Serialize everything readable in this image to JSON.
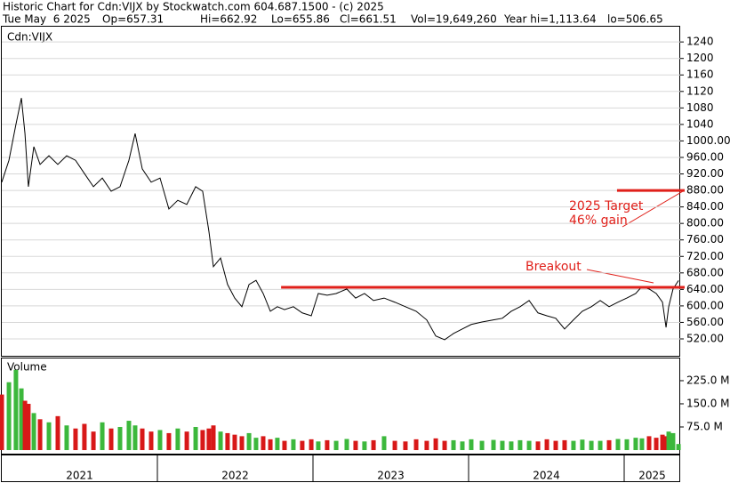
{
  "header": {
    "title": "Historic Chart for Cdn:VIJX by Stockwatch.com 604.687.1500 - (c) 2025",
    "stats": [
      "Tue May  6 2025",
      "Op=657.31",
      "Hi=662.92",
      "Lo=655.86",
      "Cl=661.51",
      "Vol=19,649,260",
      "Year hi=1,113.64",
      "lo=506.65"
    ]
  },
  "chart_data": [
    {
      "type": "line",
      "title": "Cdn:VIJX",
      "color": "#000000",
      "x": [
        2021.0,
        2021.046,
        2021.091,
        2021.126,
        2021.149,
        2021.171,
        2021.206,
        2021.246,
        2021.303,
        2021.36,
        2021.417,
        2021.474,
        2021.531,
        2021.589,
        2021.646,
        2021.703,
        2021.76,
        2021.817,
        2021.857,
        2021.903,
        2021.96,
        2022.017,
        2022.074,
        2022.131,
        2022.189,
        2022.246,
        2022.291,
        2022.331,
        2022.36,
        2022.406,
        2022.451,
        2022.497,
        2022.543,
        2022.589,
        2022.634,
        2022.68,
        2022.726,
        2022.771,
        2022.817,
        2022.874,
        2022.931,
        2022.989,
        2023.034,
        2023.091,
        2023.149,
        2023.217,
        2023.274,
        2023.331,
        2023.389,
        2023.457,
        2023.526,
        2023.594,
        2023.663,
        2023.731,
        2023.789,
        2023.846,
        2023.903,
        2023.96,
        2024.017,
        2024.086,
        2024.16,
        2024.217,
        2024.274,
        2024.331,
        2024.389,
        2024.446,
        2024.503,
        2024.56,
        2024.617,
        2024.674,
        2024.731,
        2024.789,
        2024.846,
        2024.903,
        2024.96,
        2025.017,
        2025.074,
        2025.114,
        2025.16,
        2025.206,
        2025.246,
        2025.269,
        2025.286,
        2025.314,
        2025.349
      ],
      "values": [
        900,
        953,
        1040,
        1104,
        1018,
        889,
        986,
        943,
        964,
        943,
        964,
        953,
        921,
        889,
        910,
        878,
        889,
        953,
        1018,
        932,
        900,
        910,
        835,
        856,
        846,
        889,
        878,
        781,
        695,
        716,
        652,
        619,
        598,
        652,
        662,
        630,
        587,
        598,
        591,
        598,
        583,
        576,
        630,
        626,
        630,
        641,
        619,
        630,
        613,
        619,
        609,
        598,
        587,
        566,
        527,
        518,
        533,
        544,
        555,
        561,
        566,
        570,
        587,
        598,
        613,
        583,
        576,
        570,
        544,
        566,
        587,
        598,
        613,
        598,
        609,
        619,
        630,
        647,
        641,
        630,
        609,
        548,
        598,
        641,
        661.51
      ],
      "xlim": [
        2021,
        2025.36
      ],
      "ylim": [
        479,
        1277
      ],
      "yticks": [
        {
          "value": 520,
          "label": "520.00"
        },
        {
          "value": 560,
          "label": "560.00"
        },
        {
          "value": 600,
          "label": "600.00"
        },
        {
          "value": 640,
          "label": "640.00"
        },
        {
          "value": 680,
          "label": "680.00"
        },
        {
          "value": 720,
          "label": "720.00"
        },
        {
          "value": 760,
          "label": "760.00"
        },
        {
          "value": 800,
          "label": "800.00"
        },
        {
          "value": 840,
          "label": "840.00"
        },
        {
          "value": 880,
          "label": "880.00"
        },
        {
          "value": 920,
          "label": "920.00"
        },
        {
          "value": 960,
          "label": "960.00"
        },
        {
          "value": 1000,
          "label": "1000.00"
        },
        1040,
        1080,
        1120,
        1160,
        1200,
        1240
      ],
      "grid": true,
      "levels": [
        {
          "value": 645,
          "from": 2022.795,
          "color": "#e0201a"
        },
        {
          "value": 880,
          "from": 2024.954,
          "color": "#e0201a"
        }
      ],
      "annotations": [
        "Breakout",
        "2025 Target",
        "46% gain"
      ]
    },
    {
      "type": "bar",
      "title": "Volume",
      "up_color": "#3cb83c",
      "down_color": "#d81818",
      "x": [
        2021.0,
        2021.046,
        2021.091,
        2021.126,
        2021.149,
        2021.171,
        2021.206,
        2021.246,
        2021.303,
        2021.36,
        2021.417,
        2021.474,
        2021.531,
        2021.589,
        2021.646,
        2021.703,
        2021.76,
        2021.817,
        2021.857,
        2021.903,
        2021.96,
        2022.017,
        2022.074,
        2022.131,
        2022.189,
        2022.246,
        2022.291,
        2022.331,
        2022.36,
        2022.406,
        2022.451,
        2022.497,
        2022.543,
        2022.589,
        2022.634,
        2022.68,
        2022.726,
        2022.771,
        2022.817,
        2022.874,
        2022.931,
        2022.989,
        2023.034,
        2023.091,
        2023.149,
        2023.217,
        2023.274,
        2023.331,
        2023.389,
        2023.457,
        2023.526,
        2023.594,
        2023.663,
        2023.731,
        2023.789,
        2023.846,
        2023.903,
        2023.96,
        2024.017,
        2024.086,
        2024.16,
        2024.217,
        2024.274,
        2024.331,
        2024.389,
        2024.446,
        2024.503,
        2024.56,
        2024.617,
        2024.674,
        2024.731,
        2024.789,
        2024.846,
        2024.903,
        2024.96,
        2025.017,
        2025.074,
        2025.114,
        2025.16,
        2025.206,
        2025.246,
        2025.269,
        2025.286,
        2025.314,
        2025.349
      ],
      "values": [
        180,
        220,
        260,
        200,
        160,
        150,
        120,
        100,
        90,
        110,
        80,
        70,
        85,
        60,
        90,
        70,
        75,
        95,
        80,
        70,
        60,
        65,
        55,
        70,
        60,
        75,
        65,
        70,
        80,
        60,
        55,
        50,
        45,
        55,
        40,
        45,
        35,
        40,
        30,
        35,
        30,
        35,
        28,
        32,
        30,
        36,
        30,
        28,
        32,
        45,
        30,
        28,
        35,
        30,
        38,
        30,
        32,
        28,
        35,
        30,
        33,
        30,
        28,
        32,
        30,
        28,
        35,
        30,
        32,
        30,
        34,
        30,
        30,
        32,
        36,
        35,
        40,
        38,
        45,
        40,
        50,
        45,
        60,
        55,
        19.65
      ],
      "xlim": [
        2021,
        2025.36
      ],
      "ylim": [
        0,
        297
      ],
      "yticks": [
        {
          "value": 75,
          "label": "75.0 M"
        },
        {
          "value": 150,
          "label": "150.0 M"
        },
        {
          "value": 225,
          "label": "225.0 M"
        }
      ],
      "xticks": [
        {
          "value": 2021,
          "label": "2021"
        },
        {
          "value": 2022,
          "label": "2022"
        },
        {
          "value": 2023,
          "label": "2023"
        },
        {
          "value": 2024,
          "label": "2024"
        },
        {
          "value": 2025,
          "label": "2025"
        }
      ]
    }
  ]
}
